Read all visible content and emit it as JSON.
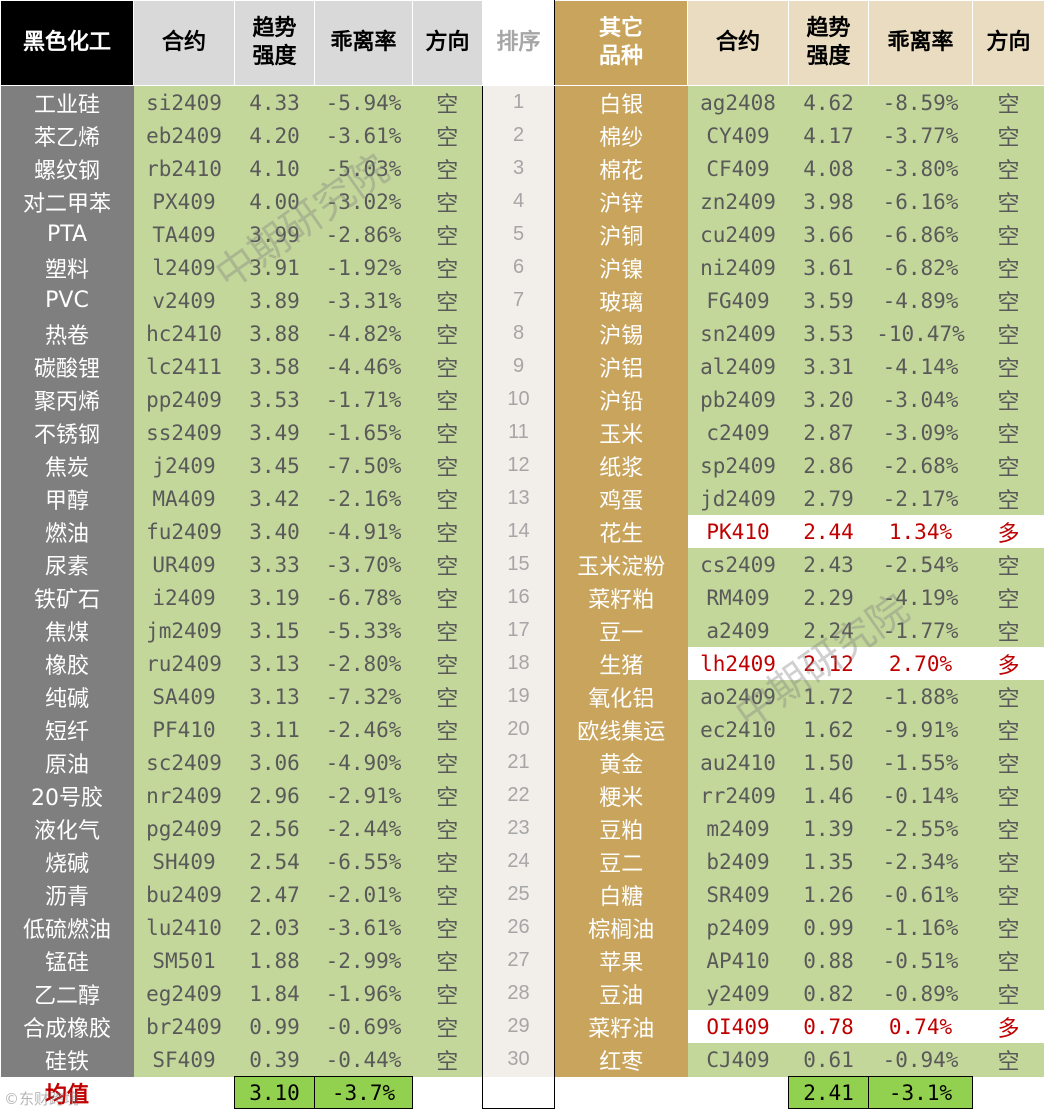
{
  "header": {
    "left_category": "黑色化工",
    "contract": "合约",
    "strength": "趋势\n强度",
    "deviation": "乖离率",
    "direction": "方向",
    "rank": "排序",
    "right_category": "其它\n品种"
  },
  "rows": [
    {
      "rank": "1",
      "l": [
        "工业硅",
        "si2409",
        "4.33",
        "-5.94%",
        "空"
      ],
      "r": [
        "白银",
        "ag2408",
        "4.62",
        "-8.59%",
        "空"
      ],
      "rh": false
    },
    {
      "rank": "2",
      "l": [
        "苯乙烯",
        "eb2409",
        "4.20",
        "-3.61%",
        "空"
      ],
      "r": [
        "棉纱",
        "CY409",
        "4.17",
        "-3.77%",
        "空"
      ],
      "rh": false
    },
    {
      "rank": "3",
      "l": [
        "螺纹钢",
        "rb2410",
        "4.10",
        "-5.03%",
        "空"
      ],
      "r": [
        "棉花",
        "CF409",
        "4.08",
        "-3.80%",
        "空"
      ],
      "rh": false
    },
    {
      "rank": "4",
      "l": [
        "对二甲苯",
        "PX409",
        "4.00",
        "-3.02%",
        "空"
      ],
      "r": [
        "沪锌",
        "zn2409",
        "3.98",
        "-6.16%",
        "空"
      ],
      "rh": false
    },
    {
      "rank": "5",
      "l": [
        "PTA",
        "TA409",
        "3.99",
        "-2.86%",
        "空"
      ],
      "r": [
        "沪铜",
        "cu2409",
        "3.66",
        "-6.86%",
        "空"
      ],
      "rh": false
    },
    {
      "rank": "6",
      "l": [
        "塑料",
        "l2409",
        "3.91",
        "-1.92%",
        "空"
      ],
      "r": [
        "沪镍",
        "ni2409",
        "3.61",
        "-6.82%",
        "空"
      ],
      "rh": false
    },
    {
      "rank": "7",
      "l": [
        "PVC",
        "v2409",
        "3.89",
        "-3.31%",
        "空"
      ],
      "r": [
        "玻璃",
        "FG409",
        "3.59",
        "-4.89%",
        "空"
      ],
      "rh": false
    },
    {
      "rank": "8",
      "l": [
        "热卷",
        "hc2410",
        "3.88",
        "-4.82%",
        "空"
      ],
      "r": [
        "沪锡",
        "sn2409",
        "3.53",
        "-10.47%",
        "空"
      ],
      "rh": false
    },
    {
      "rank": "9",
      "l": [
        "碳酸锂",
        "lc2411",
        "3.58",
        "-4.46%",
        "空"
      ],
      "r": [
        "沪铝",
        "al2409",
        "3.31",
        "-4.14%",
        "空"
      ],
      "rh": false
    },
    {
      "rank": "10",
      "l": [
        "聚丙烯",
        "pp2409",
        "3.53",
        "-1.71%",
        "空"
      ],
      "r": [
        "沪铅",
        "pb2409",
        "3.20",
        "-3.04%",
        "空"
      ],
      "rh": false
    },
    {
      "rank": "11",
      "l": [
        "不锈钢",
        "ss2409",
        "3.49",
        "-1.65%",
        "空"
      ],
      "r": [
        "玉米",
        "c2409",
        "2.87",
        "-3.09%",
        "空"
      ],
      "rh": false
    },
    {
      "rank": "12",
      "l": [
        "焦炭",
        "j2409",
        "3.45",
        "-7.50%",
        "空"
      ],
      "r": [
        "纸浆",
        "sp2409",
        "2.86",
        "-2.68%",
        "空"
      ],
      "rh": false
    },
    {
      "rank": "13",
      "l": [
        "甲醇",
        "MA409",
        "3.42",
        "-2.16%",
        "空"
      ],
      "r": [
        "鸡蛋",
        "jd2409",
        "2.79",
        "-2.17%",
        "空"
      ],
      "rh": false
    },
    {
      "rank": "14",
      "l": [
        "燃油",
        "fu2409",
        "3.40",
        "-4.91%",
        "空"
      ],
      "r": [
        "花生",
        "PK410",
        "2.44",
        "1.34%",
        "多"
      ],
      "rh": true
    },
    {
      "rank": "15",
      "l": [
        "尿素",
        "UR409",
        "3.33",
        "-3.70%",
        "空"
      ],
      "r": [
        "玉米淀粉",
        "cs2409",
        "2.43",
        "-2.54%",
        "空"
      ],
      "rh": false
    },
    {
      "rank": "16",
      "l": [
        "铁矿石",
        "i2409",
        "3.19",
        "-6.78%",
        "空"
      ],
      "r": [
        "菜籽粕",
        "RM409",
        "2.29",
        "-4.19%",
        "空"
      ],
      "rh": false
    },
    {
      "rank": "17",
      "l": [
        "焦煤",
        "jm2409",
        "3.15",
        "-5.33%",
        "空"
      ],
      "r": [
        "豆一",
        "a2409",
        "2.24",
        "-1.77%",
        "空"
      ],
      "rh": false
    },
    {
      "rank": "18",
      "l": [
        "橡胶",
        "ru2409",
        "3.13",
        "-2.80%",
        "空"
      ],
      "r": [
        "生猪",
        "lh2409",
        "2.12",
        "2.70%",
        "多"
      ],
      "rh": true
    },
    {
      "rank": "19",
      "l": [
        "纯碱",
        "SA409",
        "3.13",
        "-7.32%",
        "空"
      ],
      "r": [
        "氧化铝",
        "ao2409",
        "1.72",
        "-1.88%",
        "空"
      ],
      "rh": false
    },
    {
      "rank": "20",
      "l": [
        "短纤",
        "PF410",
        "3.11",
        "-2.46%",
        "空"
      ],
      "r": [
        "欧线集运",
        "ec2410",
        "1.62",
        "-9.91%",
        "空"
      ],
      "rh": false
    },
    {
      "rank": "21",
      "l": [
        "原油",
        "sc2409",
        "3.06",
        "-4.90%",
        "空"
      ],
      "r": [
        "黄金",
        "au2410",
        "1.50",
        "-1.55%",
        "空"
      ],
      "rh": false
    },
    {
      "rank": "22",
      "l": [
        "20号胶",
        "nr2409",
        "2.96",
        "-2.91%",
        "空"
      ],
      "r": [
        "粳米",
        "rr2409",
        "1.46",
        "-0.14%",
        "空"
      ],
      "rh": false
    },
    {
      "rank": "23",
      "l": [
        "液化气",
        "pg2409",
        "2.56",
        "-2.44%",
        "空"
      ],
      "r": [
        "豆粕",
        "m2409",
        "1.39",
        "-2.55%",
        "空"
      ],
      "rh": false
    },
    {
      "rank": "24",
      "l": [
        "烧碱",
        "SH409",
        "2.54",
        "-6.55%",
        "空"
      ],
      "r": [
        "豆二",
        "b2409",
        "1.35",
        "-2.34%",
        "空"
      ],
      "rh": false
    },
    {
      "rank": "25",
      "l": [
        "沥青",
        "bu2409",
        "2.47",
        "-2.01%",
        "空"
      ],
      "r": [
        "白糖",
        "SR409",
        "1.26",
        "-0.61%",
        "空"
      ],
      "rh": false
    },
    {
      "rank": "26",
      "l": [
        "低硫燃油",
        "lu2410",
        "2.03",
        "-3.61%",
        "空"
      ],
      "r": [
        "棕榈油",
        "p2409",
        "0.99",
        "-1.16%",
        "空"
      ],
      "rh": false
    },
    {
      "rank": "27",
      "l": [
        "锰硅",
        "SM501",
        "1.88",
        "-2.99%",
        "空"
      ],
      "r": [
        "苹果",
        "AP410",
        "0.88",
        "-0.51%",
        "空"
      ],
      "rh": false
    },
    {
      "rank": "28",
      "l": [
        "乙二醇",
        "eg2409",
        "1.84",
        "-1.96%",
        "空"
      ],
      "r": [
        "豆油",
        "y2409",
        "0.82",
        "-0.89%",
        "空"
      ],
      "rh": false
    },
    {
      "rank": "29",
      "l": [
        "合成橡胶",
        "br2409",
        "0.99",
        "-0.69%",
        "空"
      ],
      "r": [
        "菜籽油",
        "OI409",
        "0.78",
        "0.74%",
        "多"
      ],
      "rh": true
    },
    {
      "rank": "30",
      "l": [
        "硅铁",
        "SF409",
        "0.39",
        "-0.44%",
        "空"
      ],
      "r": [
        "红枣",
        "CJ409",
        "0.61",
        "-0.94%",
        "空"
      ],
      "rh": false
    }
  ],
  "footer": {
    "label": "均值",
    "left_strength": "3.10",
    "left_deviation": "-3.7%",
    "right_strength": "2.41",
    "right_deviation": "-3.1%"
  },
  "watermarks": [
    "中期研究院",
    "中期研究院",
    "©东财跨境"
  ],
  "colors": {
    "green": "#c4d79b",
    "gray": "#7f7f7f",
    "gold": "#c9a45c",
    "avg_green": "#92d050",
    "red": "#c00000"
  }
}
